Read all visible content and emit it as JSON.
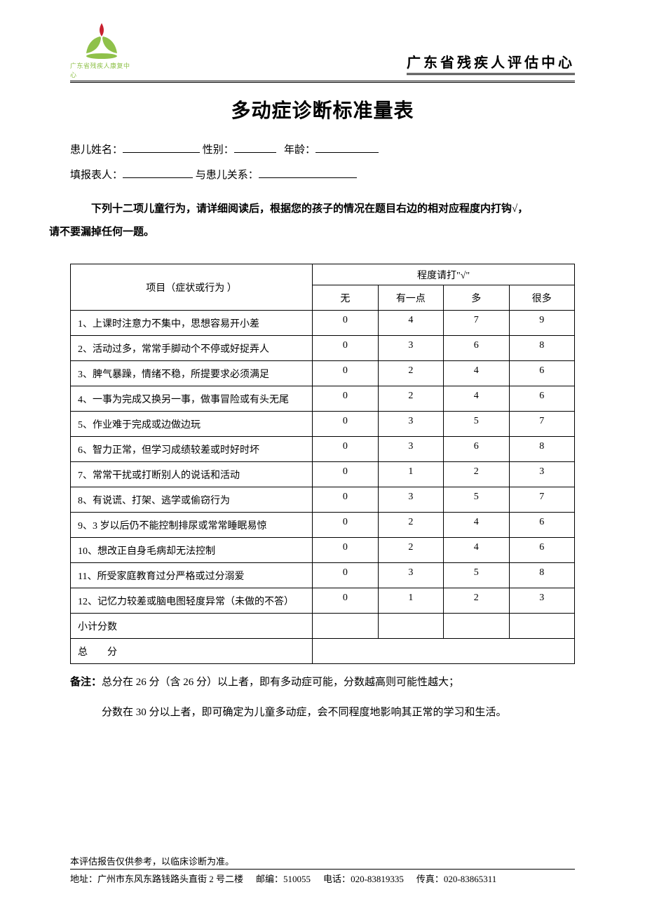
{
  "header": {
    "logo_caption": "广东省残疾人康复中心",
    "org_name": "广东省残疾人评估中心"
  },
  "title": "多动症诊断标准量表",
  "form": {
    "name_label": "患儿姓名：",
    "gender_label": "性别：",
    "age_label": "年龄：",
    "reporter_label": "填报表人：",
    "relation_label": "与患儿关系："
  },
  "instructions": {
    "text1": "下列十二项儿童行为，请详细阅读后，根据您的孩子的情况在题目右边的相对应程度内打钩√，",
    "text2": "请不要漏掉任何一题。"
  },
  "table": {
    "header_item": "项目（症状或行为 ）",
    "header_degree": "程度请打\"√\"",
    "cols": [
      "无",
      "有一点",
      "多",
      "很多"
    ],
    "rows": [
      {
        "item": "1、上课时注意力不集中，思想容易开小差",
        "scores": [
          "0",
          "4",
          "7",
          "9"
        ]
      },
      {
        "item": "2、活动过多，常常手脚动个不停或好捉弄人",
        "scores": [
          "0",
          "3",
          "6",
          "8"
        ]
      },
      {
        "item": "3、脾气暴躁，情绪不稳，所提要求必须满足",
        "scores": [
          "0",
          "2",
          "4",
          "6"
        ]
      },
      {
        "item": "4、一事为完成又换另一事，做事冒险或有头无尾",
        "scores": [
          "0",
          "2",
          "4",
          "6"
        ]
      },
      {
        "item": "5、作业难于完成或边做边玩",
        "scores": [
          "0",
          "3",
          "5",
          "7"
        ]
      },
      {
        "item": "6、智力正常，但学习成绩较差或时好时坏",
        "scores": [
          "0",
          "3",
          "6",
          "8"
        ]
      },
      {
        "item": "7、常常干扰或打断别人的说话和活动",
        "scores": [
          "0",
          "1",
          "2",
          "3"
        ]
      },
      {
        "item": "8、有说谎、打架、逃学或偷窃行为",
        "scores": [
          "0",
          "3",
          "5",
          "7"
        ]
      },
      {
        "item": "9、3 岁以后仍不能控制排尿或常常睡眠易惊",
        "scores": [
          "0",
          "2",
          "4",
          "6"
        ]
      },
      {
        "item": "10、想改正自身毛病却无法控制",
        "scores": [
          "0",
          "2",
          "4",
          "6"
        ]
      },
      {
        "item": "11、所受家庭教育过分严格或过分溺爱",
        "scores": [
          "0",
          "3",
          "5",
          "8"
        ]
      },
      {
        "item": "12、记忆力较差或脑电图轻度异常（未做的不答）",
        "scores": [
          "0",
          "1",
          "2",
          "3"
        ]
      }
    ],
    "subtotal_label": "小计分数",
    "total_label": "总分"
  },
  "notes": {
    "prefix": "备注：",
    "line1": "总分在 26 分（含 26 分）以上者，即有多动症可能，分数越高则可能性越大；",
    "line2": "分数在 30 分以上者，即可确定为儿童多动症，会不同程度地影响其正常的学习和生活。"
  },
  "footer": {
    "disclaimer": "本评估报告仅供参考，以临床诊断为准。",
    "address_label": "地址：",
    "address": "广州市东风东路钱路头直街 2 号二楼",
    "zip_label": "邮编：",
    "zip": "510055",
    "tel_label": "电话：",
    "tel": "020-83819335",
    "fax_label": "传真：",
    "fax": "020-83865311"
  }
}
